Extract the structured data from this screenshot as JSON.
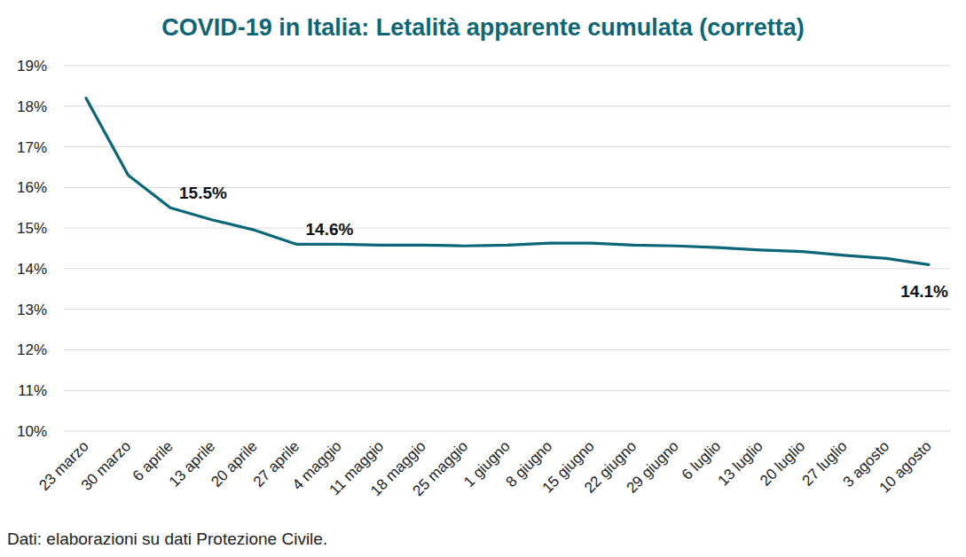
{
  "chart_data": {
    "type": "line",
    "title": "COVID-19 in Italia: Letalità apparente cumulata (corretta)",
    "source": "Dati: elaborazioni su dati Protezione Civile.",
    "categories": [
      "23 marzo",
      "30 marzo",
      "6 aprile",
      "13 aprile",
      "20 aprile",
      "27 aprile",
      "4 maggio",
      "11 maggio",
      "18 maggio",
      "25 maggio",
      "1 giugno",
      "8 giugno",
      "15 giugno",
      "22 giugno",
      "29 giugno",
      "6 luglio",
      "13 luglio",
      "20 luglio",
      "27 luglio",
      "3 agosto",
      "10 agosto"
    ],
    "values": [
      18.2,
      16.3,
      15.5,
      15.2,
      14.95,
      14.6,
      14.6,
      14.58,
      14.58,
      14.56,
      14.58,
      14.63,
      14.63,
      14.58,
      14.56,
      14.52,
      14.46,
      14.42,
      14.33,
      14.25,
      14.1
    ],
    "data_labels": true,
    "value_labels": [
      null,
      null,
      "15.5%",
      null,
      null,
      "14.6%",
      null,
      null,
      null,
      null,
      null,
      null,
      null,
      null,
      null,
      null,
      null,
      null,
      null,
      null,
      "14.1%"
    ],
    "color": "#0b6678",
    "ylim": [
      10,
      19
    ],
    "yticks": [
      {
        "value": 10,
        "label": "10%"
      },
      {
        "value": 11,
        "label": "11%"
      },
      {
        "value": 12,
        "label": "12%"
      },
      {
        "value": 13,
        "label": "13%"
      },
      {
        "value": 14,
        "label": "14%"
      },
      {
        "value": 15,
        "label": "15%"
      },
      {
        "value": 16,
        "label": "16%"
      },
      {
        "value": 17,
        "label": "17%"
      },
      {
        "value": 18,
        "label": "18%"
      },
      {
        "value": 19,
        "label": "19%"
      }
    ],
    "grid": true
  }
}
